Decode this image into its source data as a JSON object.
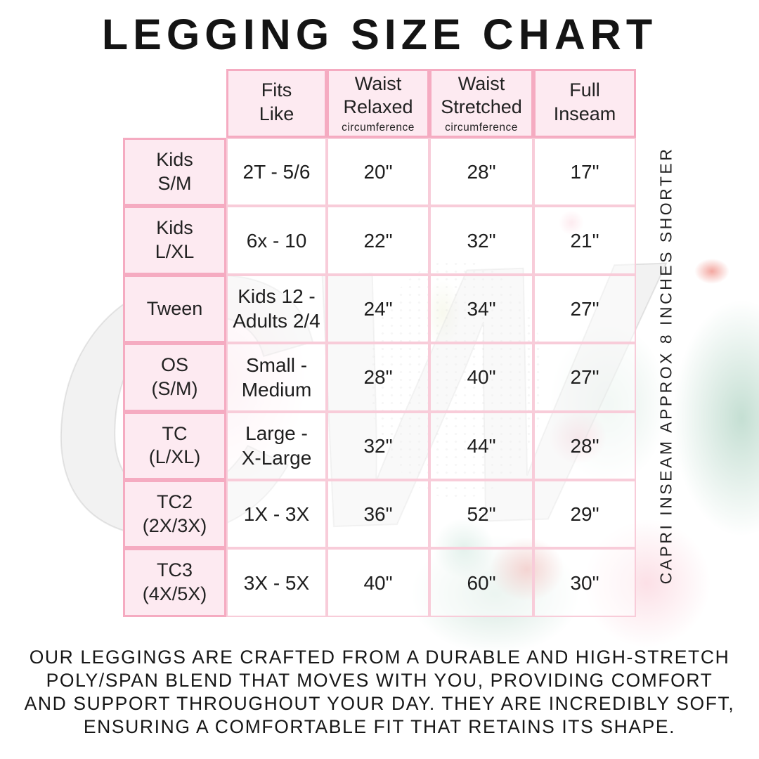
{
  "page": {
    "title": "LEGGING SIZE CHART",
    "side_note": "CAPRI INSEAM APPROX 8 INCHES SHORTER",
    "watermark": "CW",
    "description_lines": [
      "OUR LEGGINGS ARE CRAFTED FROM A DURABLE AND HIGH-STRETCH",
      "POLY/SPAN BLEND THAT MOVES WITH YOU, PROVIDING COMFORT",
      "AND SUPPORT THROUGHOUT YOUR DAY. THEY ARE INCREDIBLY SOFT,",
      "ENSURING A COMFORTABLE FIT THAT RETAINS ITS SHAPE."
    ]
  },
  "colors": {
    "cell_pink": "#fdeaf1",
    "border_pink_strong": "#f5abc1",
    "border_pink_light": "#f8ccd9",
    "text": "#1b1b1b",
    "watermark_mint": "#b1d4c4",
    "watermark_coral": "#e25a54"
  },
  "table": {
    "columns": [
      {
        "label": "Fits\nLike",
        "sub": ""
      },
      {
        "label": "Waist\nRelaxed",
        "sub": "circumference"
      },
      {
        "label": "Waist\nStretched",
        "sub": "circumference"
      },
      {
        "label": "Full\nInseam",
        "sub": ""
      }
    ],
    "rows": [
      {
        "size": "Kids\nS/M",
        "fits": "2T - 5/6",
        "relaxed": "20\"",
        "stretched": "28\"",
        "inseam": "17\""
      },
      {
        "size": "Kids\nL/XL",
        "fits": "6x - 10",
        "relaxed": "22\"",
        "stretched": "32\"",
        "inseam": "21\""
      },
      {
        "size": "Tween",
        "fits": "Kids 12 -\nAdults 2/4",
        "relaxed": "24\"",
        "stretched": "34\"",
        "inseam": "27\""
      },
      {
        "size": "OS\n(S/M)",
        "fits": "Small -\nMedium",
        "relaxed": "28\"",
        "stretched": "40\"",
        "inseam": "27\""
      },
      {
        "size": "TC\n(L/XL)",
        "fits": "Large -\nX-Large",
        "relaxed": "32\"",
        "stretched": "44\"",
        "inseam": "28\""
      },
      {
        "size": "TC2\n(2X/3X)",
        "fits": "1X - 3X",
        "relaxed": "36\"",
        "stretched": "52\"",
        "inseam": "29\""
      },
      {
        "size": "TC3\n(4X/5X)",
        "fits": "3X - 5X",
        "relaxed": "40\"",
        "stretched": "60\"",
        "inseam": "30\""
      }
    ]
  }
}
